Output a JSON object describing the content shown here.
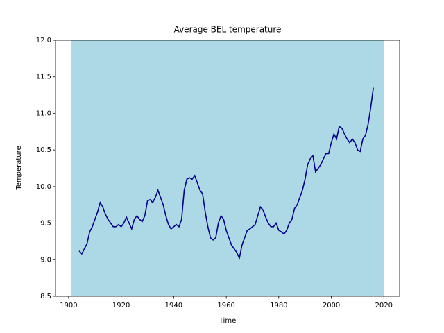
{
  "chart_data": {
    "type": "line",
    "title": "Average BEL temperature",
    "xlabel": "Time",
    "ylabel": "Temperature",
    "x": [
      1904,
      1905,
      1906,
      1907,
      1908,
      1909,
      1910,
      1911,
      1912,
      1913,
      1914,
      1915,
      1916,
      1917,
      1918,
      1919,
      1920,
      1921,
      1922,
      1923,
      1924,
      1925,
      1926,
      1927,
      1928,
      1929,
      1930,
      1931,
      1932,
      1933,
      1934,
      1935,
      1936,
      1937,
      1938,
      1939,
      1940,
      1941,
      1942,
      1943,
      1944,
      1945,
      1946,
      1947,
      1948,
      1949,
      1950,
      1951,
      1952,
      1953,
      1954,
      1955,
      1956,
      1957,
      1958,
      1959,
      1960,
      1961,
      1962,
      1963,
      1964,
      1965,
      1966,
      1967,
      1968,
      1969,
      1970,
      1971,
      1972,
      1973,
      1974,
      1975,
      1976,
      1977,
      1978,
      1979,
      1980,
      1981,
      1982,
      1983,
      1984,
      1985,
      1986,
      1987,
      1988,
      1989,
      1990,
      1991,
      1992,
      1993,
      1994,
      1995,
      1996,
      1997,
      1998,
      1999,
      2000,
      2001,
      2002,
      2003,
      2004,
      2005,
      2006,
      2007,
      2008,
      2009,
      2010,
      2011,
      2012,
      2013,
      2014,
      2015,
      2016
    ],
    "series": [
      {
        "color": "#00008b",
        "values": [
          9.12,
          9.08,
          9.15,
          9.22,
          9.38,
          9.45,
          9.55,
          9.65,
          9.78,
          9.72,
          9.62,
          9.55,
          9.5,
          9.45,
          9.45,
          9.48,
          9.45,
          9.5,
          9.58,
          9.5,
          9.42,
          9.55,
          9.6,
          9.55,
          9.52,
          9.6,
          9.8,
          9.82,
          9.78,
          9.85,
          9.95,
          9.85,
          9.75,
          9.6,
          9.48,
          9.42,
          9.45,
          9.48,
          9.45,
          9.55,
          9.95,
          10.1,
          10.12,
          10.1,
          10.15,
          10.05,
          9.95,
          9.9,
          9.65,
          9.45,
          9.3,
          9.27,
          9.3,
          9.5,
          9.6,
          9.55,
          9.4,
          9.3,
          9.2,
          9.15,
          9.1,
          9.02,
          9.2,
          9.3,
          9.4,
          9.42,
          9.45,
          9.48,
          9.6,
          9.72,
          9.68,
          9.58,
          9.5,
          9.45,
          9.45,
          9.5,
          9.4,
          9.38,
          9.35,
          9.4,
          9.5,
          9.55,
          9.7,
          9.75,
          9.85,
          9.95,
          10.1,
          10.3,
          10.38,
          10.42,
          10.2,
          10.25,
          10.3,
          10.38,
          10.45,
          10.45,
          10.6,
          10.72,
          10.65,
          10.82,
          10.8,
          10.72,
          10.65,
          10.6,
          10.65,
          10.6,
          10.5,
          10.48,
          10.65,
          10.7,
          10.85,
          11.08,
          11.35
        ]
      }
    ],
    "band": {
      "color": "#add8e6",
      "x": [
        1901,
        2020
      ],
      "lower": [
        8.5,
        8.5
      ],
      "upper": [
        12,
        12
      ]
    },
    "xlim": [
      1895,
      2026
    ],
    "xticks": [
      1900,
      1920,
      1940,
      1960,
      1980,
      2000,
      2020
    ],
    "ylim": [
      8.5,
      12
    ],
    "yticks": [
      8.5,
      {
        "value": 9,
        "label": "9.0"
      },
      9.5,
      {
        "value": 10,
        "label": "10.0"
      },
      10.5,
      {
        "value": 11,
        "label": "11.0"
      },
      11.5,
      {
        "value": 12,
        "label": "12.0"
      }
    ]
  }
}
